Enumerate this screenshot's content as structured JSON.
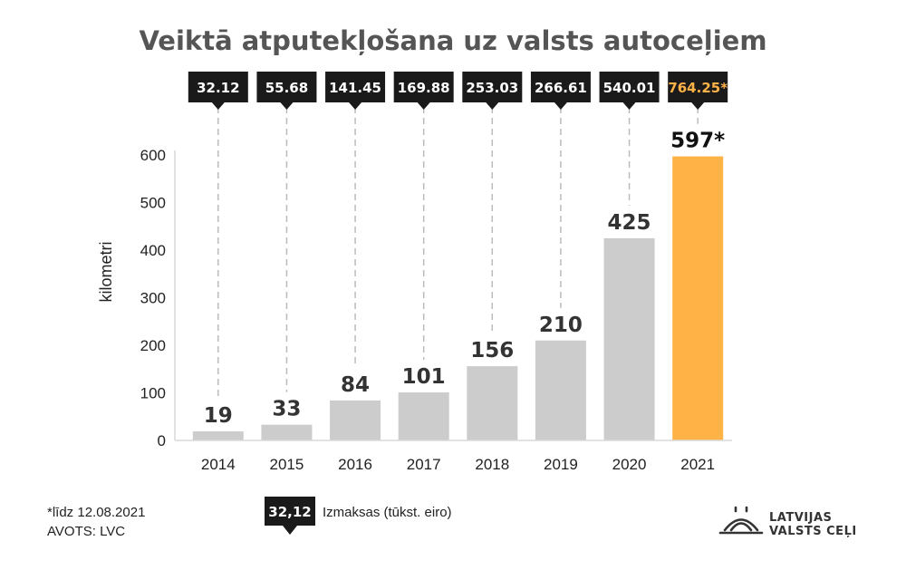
{
  "chart_data": {
    "type": "bar",
    "title": "Veiktā atputekļošana uz valsts autoceļiem",
    "ylabel": "kilometri",
    "ylim": [
      0,
      600
    ],
    "yticks": [
      0,
      100,
      200,
      300,
      400,
      500,
      600
    ],
    "categories": [
      "2014",
      "2015",
      "2016",
      "2017",
      "2018",
      "2019",
      "2020",
      "2021"
    ],
    "values": [
      19,
      33,
      84,
      101,
      156,
      210,
      425,
      597
    ],
    "value_labels": [
      "19",
      "33",
      "84",
      "101",
      "156",
      "210",
      "425",
      "597*"
    ],
    "costs": [
      "32.12",
      "55.68",
      "141.45",
      "169.88",
      "253.03",
      "266.61",
      "540.01",
      "764.25*"
    ],
    "highlight_index": 7,
    "colors": {
      "bar": "#cccccc",
      "highlight": "#ffb347",
      "cost_box": "#1a1a1a",
      "title": "#555555"
    }
  },
  "footer": {
    "note": "*līdz 12.08.2021",
    "source": "AVOTS: LVC"
  },
  "legend": {
    "sample": "32,12",
    "label": "Izmaksas (tūkst. eiro)"
  },
  "logo": {
    "line1": "LATVIJAS",
    "line2": "VALSTS CEĻI",
    "icon": "road-arch-icon"
  }
}
